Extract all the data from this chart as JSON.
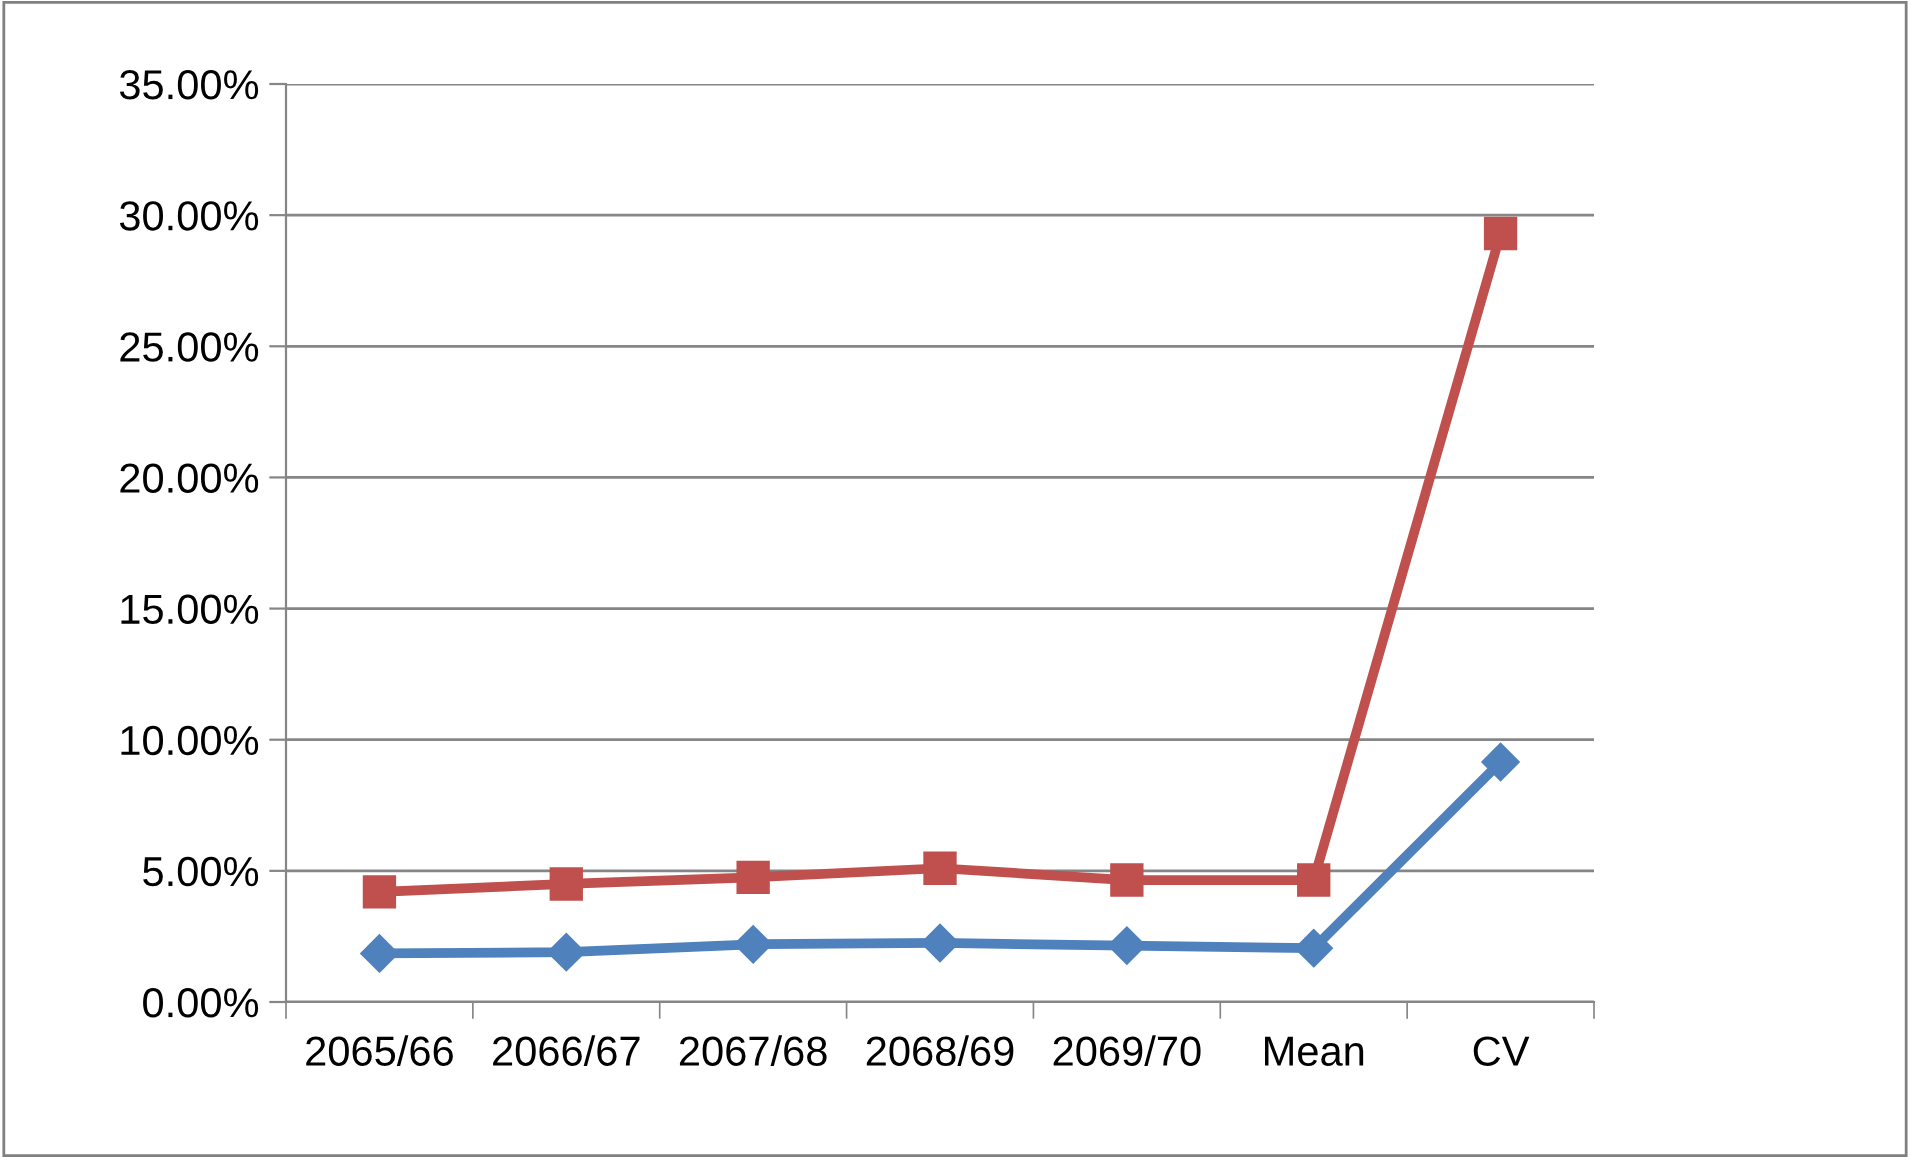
{
  "chart_data": {
    "type": "line",
    "categories": [
      "2065/66",
      "2066/67",
      "2067/68",
      "2068/69",
      "2069/70",
      "Mean",
      "CV"
    ],
    "series": [
      {
        "color": "#c0504d",
        "marker": "square",
        "values": [
          4.2,
          4.5,
          4.75,
          5.1,
          4.65,
          4.65,
          29.3
        ]
      },
      {
        "color": "#4f81bd",
        "marker": "diamond",
        "values": [
          1.85,
          1.9,
          2.2,
          2.25,
          2.15,
          2.05,
          9.15
        ]
      }
    ],
    "ylim": [
      0,
      35
    ],
    "yticks": [
      {
        "value": 0,
        "label": "0.00%"
      },
      {
        "value": 5,
        "label": "5.00%"
      },
      {
        "value": 10,
        "label": "10.00%"
      },
      {
        "value": 15,
        "label": "15.00%"
      },
      {
        "value": 20,
        "label": "20.00%"
      },
      {
        "value": 25,
        "label": "25.00%"
      },
      {
        "value": 30,
        "label": "30.00%"
      },
      {
        "value": 35,
        "label": "35.00%"
      }
    ],
    "grid": "y",
    "line_style": "solid"
  }
}
